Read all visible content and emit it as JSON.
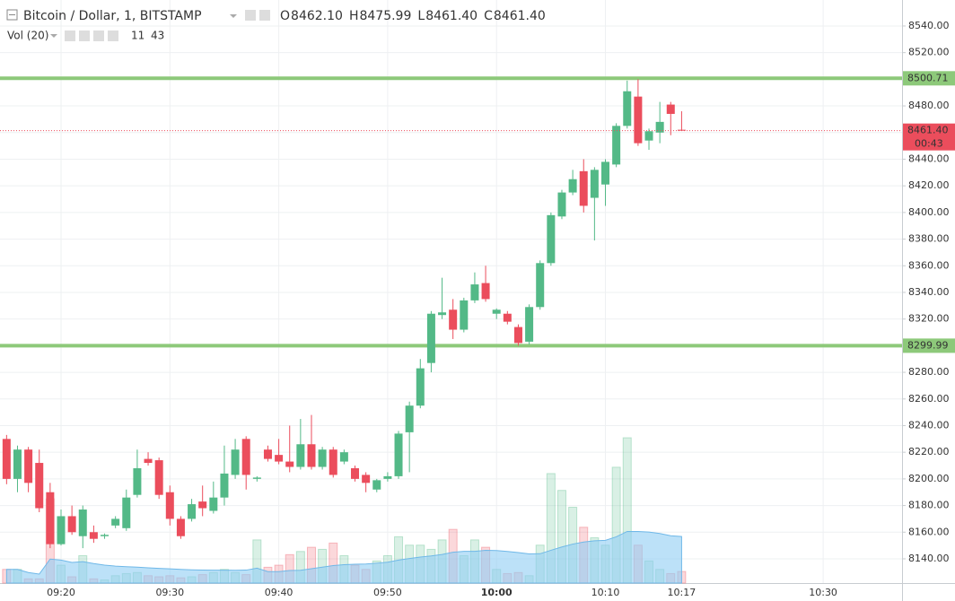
{
  "chart_data": {
    "type": "candlestick",
    "title": "Bitcoin / Dollar, 1, BITSTAMP",
    "ohlc_legend": [
      {
        "key": "O",
        "value": "8462.10"
      },
      {
        "key": "H",
        "value": "8475.99"
      },
      {
        "key": "L",
        "value": "8461.40"
      },
      {
        "key": "C",
        "value": "8461.40"
      }
    ],
    "up_color": "#53b987",
    "down_color": "#eb4d5c",
    "x": [
      "09:15",
      "09:16",
      "09:17",
      "09:18",
      "09:19",
      "09:20",
      "09:21",
      "09:22",
      "09:23",
      "09:24",
      "09:25",
      "09:26",
      "09:27",
      "09:28",
      "09:29",
      "09:30",
      "09:31",
      "09:32",
      "09:33",
      "09:34",
      "09:35",
      "09:36",
      "09:37",
      "09:38",
      "09:39",
      "09:40",
      "09:41",
      "09:42",
      "09:43",
      "09:44",
      "09:45",
      "09:46",
      "09:47",
      "09:48",
      "09:49",
      "09:50",
      "09:51",
      "09:52",
      "09:53",
      "09:54",
      "09:55",
      "09:56",
      "09:57",
      "09:58",
      "09:59",
      "10:00",
      "10:01",
      "10:02",
      "10:03",
      "10:04",
      "10:05",
      "10:06",
      "10:07",
      "10:08",
      "10:09",
      "10:10",
      "10:11",
      "10:12",
      "10:13",
      "10:14",
      "10:15",
      "10:16",
      "10:17"
    ],
    "candles": [
      [
        8230,
        8233,
        8196,
        8200
      ],
      [
        8200,
        8225,
        8190,
        8222
      ],
      [
        8222,
        8224,
        8190,
        8197
      ],
      [
        8212,
        8222,
        8175,
        8178
      ],
      [
        8190,
        8197,
        8148,
        8151
      ],
      [
        8151,
        8177,
        8150,
        8172
      ],
      [
        8172,
        8180,
        8158,
        8160
      ],
      [
        8157,
        8180,
        8148,
        8177
      ],
      [
        8160,
        8165,
        8152,
        8155
      ],
      [
        8157,
        8159,
        8155,
        8158
      ],
      [
        8165,
        8172,
        8163,
        8170
      ],
      [
        8163,
        8192,
        8161,
        8186
      ],
      [
        8188,
        8222,
        8186,
        8208
      ],
      [
        8215,
        8220,
        8210,
        8212
      ],
      [
        8214,
        8216,
        8185,
        8188
      ],
      [
        8190,
        8195,
        8165,
        8170
      ],
      [
        8170,
        8172,
        8155,
        8157
      ],
      [
        8170,
        8185,
        8168,
        8181
      ],
      [
        8183,
        8195,
        8172,
        8178
      ],
      [
        8176,
        8198,
        8174,
        8186
      ],
      [
        8186,
        8225,
        8180,
        8204
      ],
      [
        8203,
        8230,
        8200,
        8222
      ],
      [
        8230,
        8232,
        8192,
        8203
      ],
      [
        8200,
        8202,
        8198,
        8201
      ],
      [
        8222,
        8225,
        8213,
        8215
      ],
      [
        8218,
        8230,
        8211,
        8213
      ],
      [
        8213,
        8240,
        8205,
        8209
      ],
      [
        8209,
        8245,
        8207,
        8226
      ],
      [
        8226,
        8248,
        8207,
        8209
      ],
      [
        8209,
        8224,
        8207,
        8222
      ],
      [
        8222,
        8224,
        8201,
        8203
      ],
      [
        8213,
        8222,
        8211,
        8220
      ],
      [
        8208,
        8210,
        8198,
        8200
      ],
      [
        8203,
        8205,
        8190,
        8197
      ],
      [
        8192,
        8200,
        8190,
        8199
      ],
      [
        8200,
        8205,
        8198,
        8202
      ],
      [
        8202,
        8236,
        8200,
        8234
      ],
      [
        8235,
        8258,
        8205,
        8255
      ],
      [
        8255,
        8290,
        8253,
        8283
      ],
      [
        8287,
        8326,
        8280,
        8324
      ],
      [
        8323,
        8351,
        8320,
        8325
      ],
      [
        8327,
        8335,
        8305,
        8312
      ],
      [
        8312,
        8336,
        8310,
        8334
      ],
      [
        8334,
        8355,
        8332,
        8346
      ],
      [
        8347,
        8360,
        8333,
        8335
      ],
      [
        8324,
        8328,
        8320,
        8327
      ],
      [
        8324,
        8326,
        8316,
        8318
      ],
      [
        8314,
        8316,
        8299.99,
        8302
      ],
      [
        8303,
        8331,
        8301,
        8329
      ],
      [
        8329,
        8364,
        8327,
        8362
      ],
      [
        8362,
        8400,
        8360,
        8398
      ],
      [
        8397,
        8417,
        8395,
        8415
      ],
      [
        8415,
        8432,
        8413,
        8425
      ],
      [
        8431,
        8440,
        8400,
        8405
      ],
      [
        8411,
        8434,
        8379,
        8432
      ],
      [
        8421,
        8440,
        8405,
        8438
      ],
      [
        8436,
        8467,
        8434,
        8465
      ],
      [
        8465,
        8499,
        8463,
        8491
      ],
      [
        8487,
        8500,
        8450,
        8452
      ],
      [
        8454,
        8463,
        8447,
        8461
      ],
      [
        8460,
        8483,
        8452,
        8468
      ],
      [
        8481,
        8483,
        8458,
        8474
      ],
      [
        8462.1,
        8475.99,
        8461.4,
        8461.4
      ]
    ],
    "volume": {
      "name": "Vol (20)",
      "ma_last": 43,
      "ma_color": "#8fcdf4",
      "values": [
        13,
        13,
        4,
        4,
        80,
        17,
        6,
        26,
        4,
        3,
        7,
        9,
        10,
        7,
        6,
        7,
        5,
        6,
        8,
        10,
        13,
        10,
        8,
        41,
        15,
        17,
        27,
        30,
        34,
        32,
        38,
        26,
        17,
        13,
        21,
        26,
        44,
        36,
        36,
        32,
        41,
        51,
        26,
        41,
        34,
        13,
        9,
        10,
        7,
        36,
        104,
        88,
        72,
        53,
        43,
        36,
        110,
        138,
        36,
        21,
        13,
        9,
        11
      ]
    },
    "ylim": [
      8121.8,
      8559.5
    ],
    "yticks": [
      {
        "value": 8140,
        "label": "8140.00"
      },
      {
        "value": 8160,
        "label": "8160.00"
      },
      {
        "value": 8180,
        "label": "8180.00"
      },
      {
        "value": 8200,
        "label": "8200.00"
      },
      {
        "value": 8220,
        "label": "8220.00"
      },
      {
        "value": 8240,
        "label": "8240.00"
      },
      {
        "value": 8260,
        "label": "8260.00"
      },
      {
        "value": 8280,
        "label": "8280.00"
      },
      {
        "value": 8300,
        "label": "8300.00"
      },
      {
        "value": 8320,
        "label": "8320.00"
      },
      {
        "value": 8340,
        "label": "8340.00"
      },
      {
        "value": 8360,
        "label": "8360.00"
      },
      {
        "value": 8380,
        "label": "8380.00"
      },
      {
        "value": 8400,
        "label": "8400.00"
      },
      {
        "value": 8420,
        "label": "8420.00"
      },
      {
        "value": 8440,
        "label": "8440.00"
      },
      {
        "value": 8460,
        "label": "8460.00"
      },
      {
        "value": 8480,
        "label": "8480.00"
      },
      {
        "value": 8500,
        "label": "8500.00"
      },
      {
        "value": 8520,
        "label": "8520.00"
      },
      {
        "value": 8540,
        "label": "8540.00"
      }
    ],
    "xticks": [
      "09:20",
      "09:30",
      "09:40",
      "09:50",
      "10:00",
      "10:10",
      "10:30"
    ],
    "current_time": "10:17",
    "levels": [
      {
        "value": 8500.71,
        "label": "8500.71"
      },
      {
        "value": 8299.99,
        "label": "8299.99"
      }
    ],
    "level_color": "#8dc97a",
    "price_line": {
      "value": 8461.4,
      "label": "8461.40",
      "countdown": "00:43"
    },
    "grid": true
  }
}
